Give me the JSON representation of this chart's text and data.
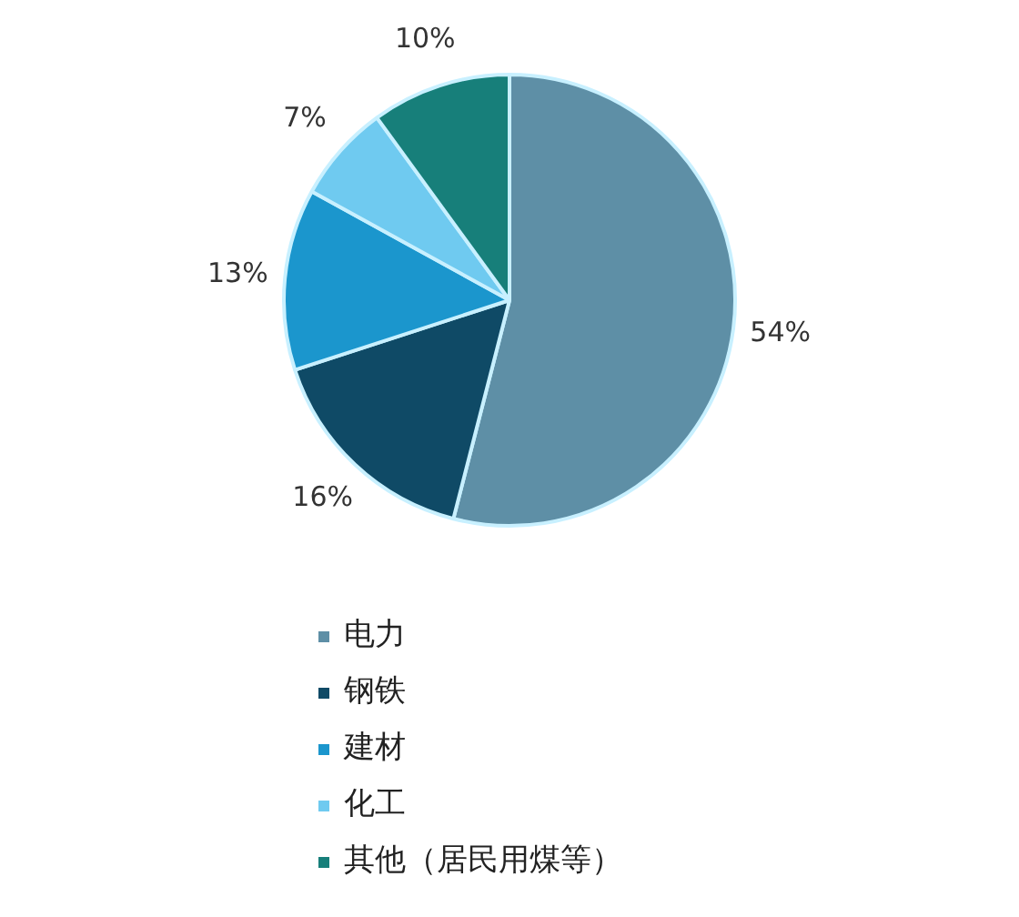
{
  "chart_data": {
    "type": "pie",
    "categories": [
      "电力",
      "钢铁",
      "建材",
      "化工",
      "其他（居民用煤等）"
    ],
    "values": [
      54,
      16,
      13,
      7,
      10
    ],
    "value_labels": [
      "54%",
      "16%",
      "13%",
      "7%",
      "10%"
    ],
    "colors": [
      "#5e8fa6",
      "#0f4a66",
      "#1b96cd",
      "#6fcaf0",
      "#177f7a"
    ],
    "legend": "bottom"
  }
}
